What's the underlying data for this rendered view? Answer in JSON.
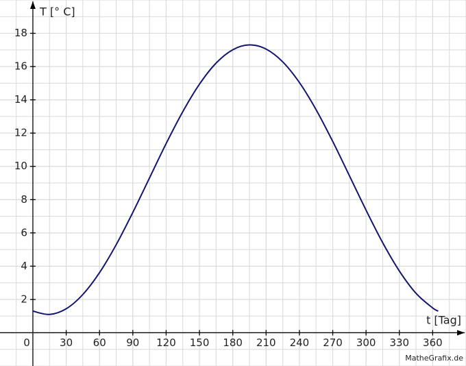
{
  "chart_data": {
    "type": "line",
    "x_label": "t [Tag]",
    "y_label": "T [° C]",
    "watermark": "MatheGrafix.de",
    "x": [
      0,
      15,
      30,
      45,
      60,
      75,
      90,
      105,
      120,
      135,
      150,
      165,
      180,
      195,
      210,
      225,
      240,
      255,
      270,
      285,
      300,
      315,
      330,
      345,
      360,
      365
    ],
    "series": [
      {
        "color": "#14146e",
        "values": [
          1.3,
          1.1,
          1.44,
          2.3,
          3.61,
          5.29,
          7.23,
          9.3,
          11.37,
          13.29,
          14.94,
          16.21,
          17.01,
          17.3,
          17.05,
          16.28,
          15.04,
          13.41,
          11.5,
          9.44,
          7.37,
          5.41,
          3.71,
          2.37,
          1.49,
          1.3
        ]
      }
    ],
    "xlim": [
      -29.6,
      390
    ],
    "ylim": [
      -2,
      20
    ],
    "xticks": [
      0,
      30,
      60,
      90,
      120,
      150,
      180,
      210,
      240,
      270,
      300,
      330,
      360
    ],
    "yticks": [
      2,
      4,
      6,
      8,
      10,
      12,
      14,
      16,
      18
    ],
    "grid": true
  }
}
